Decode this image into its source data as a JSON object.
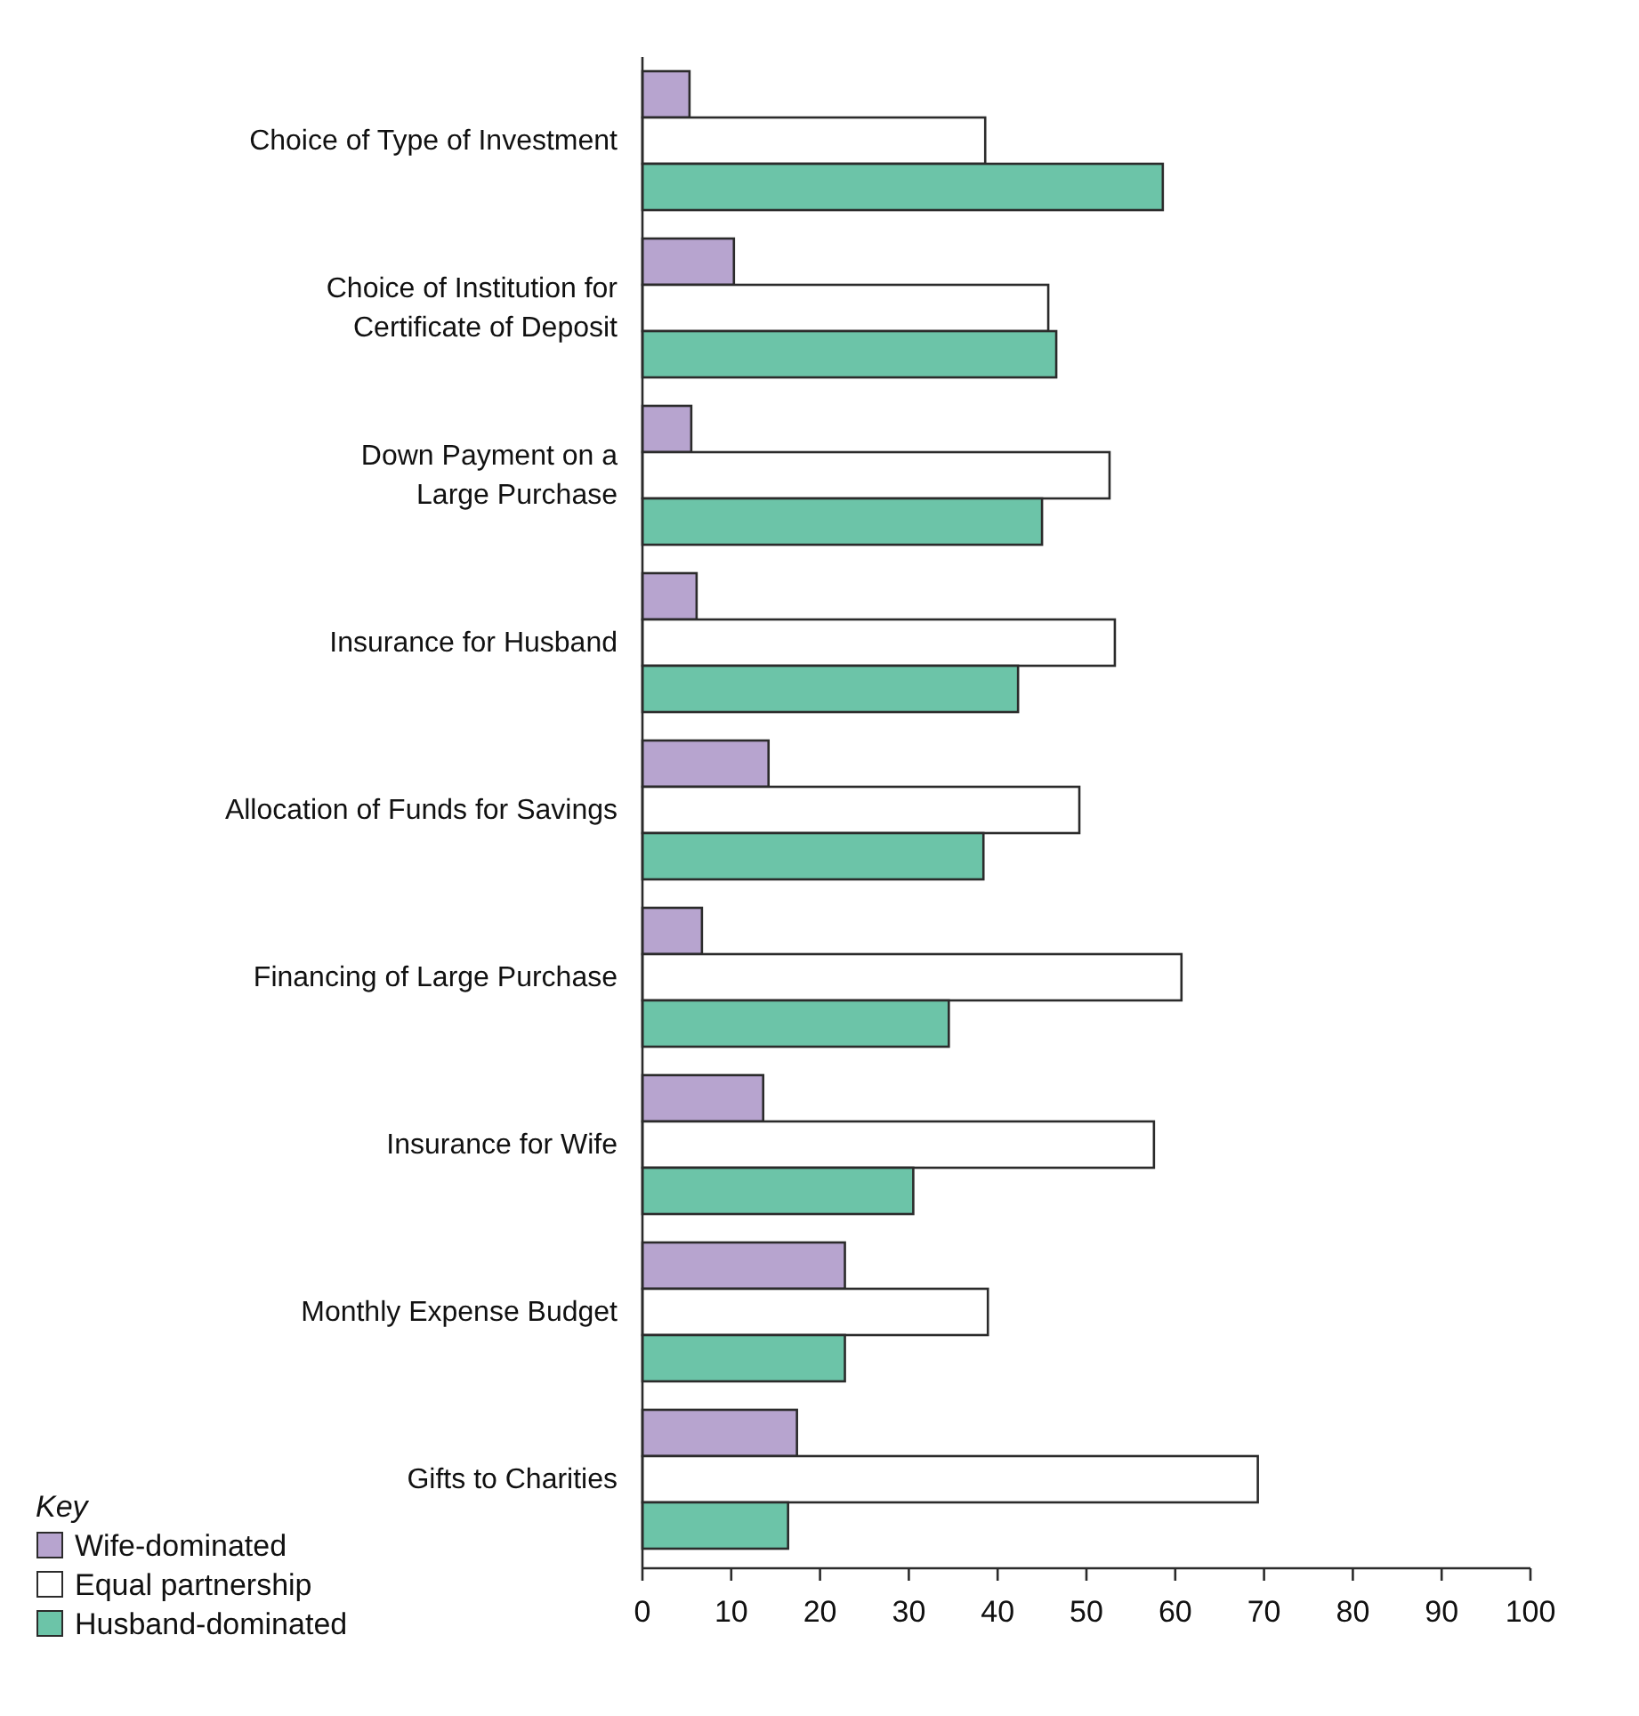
{
  "chart_data": {
    "type": "bar",
    "orientation": "horizontal",
    "categories": [
      "Choice of Type of Investment",
      "Choice of Institution for Certificate of Deposit",
      "Down Payment on a Large Purchase",
      "Insurance for Husband",
      "Allocation of Funds for Savings",
      "Financing of Large Purchase",
      "Insurance for Wife",
      "Monthly Expense Budget",
      "Gifts to Charities"
    ],
    "series": [
      {
        "name": "Wife-dominated",
        "color": "#b7a4cf",
        "values": [
          5.3,
          10.3,
          5.5,
          6.1,
          14.2,
          6.7,
          13.6,
          22.8,
          17.4
        ]
      },
      {
        "name": "Equal partnership",
        "color": "#ffffff",
        "values": [
          38.6,
          45.7,
          52.6,
          53.2,
          49.2,
          60.7,
          57.6,
          38.9,
          69.3
        ]
      },
      {
        "name": "Husband-dominated",
        "color": "#6cc4a8",
        "values": [
          58.6,
          46.6,
          45.0,
          42.3,
          38.4,
          34.5,
          30.5,
          22.8,
          16.4
        ]
      }
    ],
    "xlim": [
      0,
      100
    ],
    "xticks": [
      0,
      10,
      20,
      30,
      40,
      50,
      60,
      70,
      80,
      90,
      100
    ],
    "legend": "bottom left",
    "legend_title": "Key",
    "grid": false
  }
}
